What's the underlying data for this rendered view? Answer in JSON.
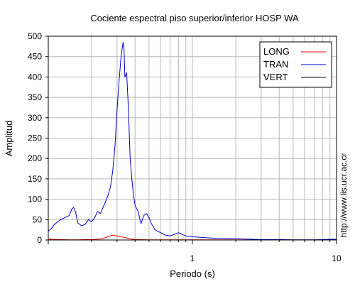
{
  "chart_data": {
    "type": "line",
    "title": "Cociente espectral piso superior/inferior  HOSP WA",
    "xlabel": "Periodo (s)",
    "ylabel": "Amplitud",
    "xscale": "log",
    "xlim": [
      0.1,
      10
    ],
    "ylim": [
      0,
      500
    ],
    "xticks": [
      1,
      10
    ],
    "xtick_labels": [
      "1",
      "10"
    ],
    "yticks": [
      0,
      50,
      100,
      150,
      200,
      250,
      300,
      350,
      400,
      450,
      500
    ],
    "grid": true,
    "legend_position": "top-right",
    "credit": "http://www.lis.ucr.ac.cr",
    "series": [
      {
        "name": "LONG",
        "color": "#ff0000",
        "x": [
          0.1,
          0.12,
          0.14,
          0.16,
          0.18,
          0.2,
          0.22,
          0.24,
          0.26,
          0.28,
          0.3,
          0.32,
          0.34,
          0.36,
          0.38,
          0.4,
          0.5,
          1,
          10
        ],
        "y": [
          2,
          1,
          0.5,
          0.5,
          1,
          1,
          2,
          4,
          8,
          12,
          10,
          8,
          6,
          4,
          2,
          1,
          0.5,
          0.3,
          0.2
        ]
      },
      {
        "name": "TRAN",
        "color": "#0000cc",
        "x": [
          0.1,
          0.105,
          0.11,
          0.12,
          0.13,
          0.14,
          0.145,
          0.15,
          0.155,
          0.16,
          0.17,
          0.18,
          0.19,
          0.2,
          0.21,
          0.22,
          0.23,
          0.24,
          0.25,
          0.26,
          0.27,
          0.28,
          0.29,
          0.3,
          0.31,
          0.32,
          0.33,
          0.335,
          0.34,
          0.35,
          0.36,
          0.37,
          0.38,
          0.39,
          0.4,
          0.42,
          0.44,
          0.46,
          0.48,
          0.5,
          0.52,
          0.55,
          0.6,
          0.65,
          0.7,
          0.75,
          0.8,
          0.9,
          1.0,
          1.2,
          1.5,
          2.0,
          2.5,
          3.0,
          4.0,
          5.0,
          7.0,
          10.0
        ],
        "y": [
          22,
          28,
          38,
          48,
          55,
          60,
          75,
          80,
          68,
          42,
          35,
          38,
          50,
          45,
          55,
          70,
          65,
          80,
          95,
          110,
          130,
          170,
          230,
          320,
          390,
          450,
          485,
          470,
          400,
          410,
          320,
          200,
          150,
          110,
          85,
          70,
          40,
          60,
          65,
          55,
          40,
          25,
          18,
          12,
          10,
          14,
          18,
          10,
          8,
          6,
          4,
          3,
          2,
          1,
          1,
          0.5,
          0.5,
          2
        ]
      },
      {
        "name": "VERT",
        "color": "#000000",
        "x": [
          0.1,
          10
        ],
        "y": [
          0,
          0
        ]
      }
    ]
  }
}
